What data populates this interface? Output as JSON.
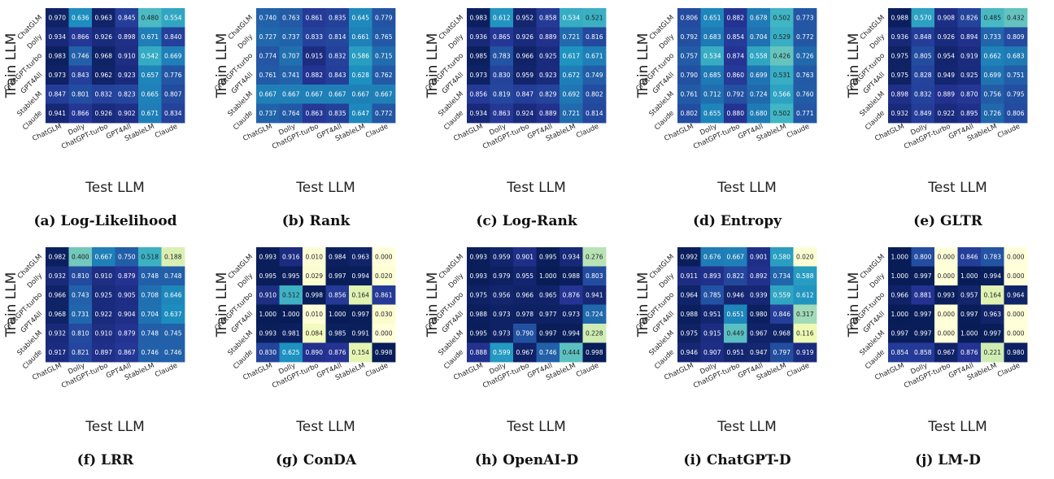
{
  "figure": {
    "colormap": "YlGnBu",
    "color_range": [
      0,
      1
    ],
    "ylabel": "Train LLM",
    "xlabel": "Test LLM"
  },
  "chart_data": [
    {
      "type": "heatmap",
      "caption": "(a) Log-Likelihood",
      "xlabel": "Test LLM",
      "ylabel": "Train LLM",
      "x_categories": [
        "ChatGLM",
        "Dolly",
        "ChatGPT-turbo",
        "GPT4All",
        "StableLM",
        "Claude"
      ],
      "y_categories": [
        "ChatGLM",
        "Dolly",
        "ChatGPT-turbo",
        "GPT4All",
        "StableLM",
        "Claude"
      ],
      "values": [
        [
          0.97,
          0.636,
          0.963,
          0.845,
          0.48,
          0.554
        ],
        [
          0.934,
          0.866,
          0.926,
          0.898,
          0.671,
          0.84
        ],
        [
          0.983,
          0.746,
          0.968,
          0.91,
          0.542,
          0.669
        ],
        [
          0.973,
          0.843,
          0.962,
          0.923,
          0.657,
          0.776
        ],
        [
          0.847,
          0.801,
          0.832,
          0.823,
          0.665,
          0.807
        ],
        [
          0.941,
          0.866,
          0.926,
          0.902,
          0.671,
          0.834
        ]
      ]
    },
    {
      "type": "heatmap",
      "caption": "(b) Rank",
      "xlabel": "Test LLM",
      "ylabel": "Train LLM",
      "x_categories": [
        "ChatGLM",
        "Dolly",
        "ChatGPT-turbo",
        "GPT4All",
        "StableLM",
        "Claude"
      ],
      "y_categories": [
        "ChatGLM",
        "Dolly",
        "ChatGPT-turbo",
        "GPT4All",
        "StableLM",
        "Claude"
      ],
      "values": [
        [
          0.74,
          0.763,
          0.861,
          0.835,
          0.645,
          0.779
        ],
        [
          0.727,
          0.737,
          0.833,
          0.814,
          0.661,
          0.765
        ],
        [
          0.774,
          0.707,
          0.915,
          0.832,
          0.586,
          0.715
        ],
        [
          0.761,
          0.741,
          0.882,
          0.843,
          0.628,
          0.762
        ],
        [
          0.667,
          0.667,
          0.667,
          0.667,
          0.667,
          0.667
        ],
        [
          0.737,
          0.764,
          0.863,
          0.835,
          0.647,
          0.772
        ]
      ]
    },
    {
      "type": "heatmap",
      "caption": "(c) Log-Rank",
      "xlabel": "Test LLM",
      "ylabel": "Train LLM",
      "x_categories": [
        "ChatGLM",
        "Dolly",
        "ChatGPT-turbo",
        "GPT4All",
        "StableLM",
        "Claude"
      ],
      "y_categories": [
        "ChatGLM",
        "Dolly",
        "ChatGPT-turbo",
        "GPT4All",
        "StableLM",
        "Claude"
      ],
      "values": [
        [
          0.983,
          0.612,
          0.952,
          0.858,
          0.534,
          0.521
        ],
        [
          0.936,
          0.865,
          0.926,
          0.889,
          0.721,
          0.816
        ],
        [
          0.985,
          0.783,
          0.966,
          0.925,
          0.617,
          0.671
        ],
        [
          0.973,
          0.83,
          0.959,
          0.923,
          0.672,
          0.749
        ],
        [
          0.856,
          0.819,
          0.847,
          0.829,
          0.692,
          0.802
        ],
        [
          0.934,
          0.863,
          0.924,
          0.889,
          0.721,
          0.814
        ]
      ]
    },
    {
      "type": "heatmap",
      "caption": "(d) Entropy",
      "xlabel": "Test LLM",
      "ylabel": "Train LLM",
      "x_categories": [
        "ChatGLM",
        "Dolly",
        "ChatGPT-turbo",
        "GPT4All",
        "StableLM",
        "Claude"
      ],
      "y_categories": [
        "ChatGLM",
        "Dolly",
        "ChatGPT-turbo",
        "GPT4All",
        "StableLM",
        "Claude"
      ],
      "values": [
        [
          0.806,
          0.651,
          0.882,
          0.678,
          0.502,
          0.773
        ],
        [
          0.792,
          0.683,
          0.854,
          0.704,
          0.529,
          0.772
        ],
        [
          0.757,
          0.534,
          0.874,
          0.558,
          0.426,
          0.726
        ],
        [
          0.79,
          0.685,
          0.86,
          0.699,
          0.531,
          0.763
        ],
        [
          0.761,
          0.712,
          0.792,
          0.724,
          0.566,
          0.76
        ],
        [
          0.802,
          0.655,
          0.88,
          0.68,
          0.502,
          0.771
        ]
      ]
    },
    {
      "type": "heatmap",
      "caption": "(e) GLTR",
      "xlabel": "Test LLM",
      "ylabel": "Train LLM",
      "x_categories": [
        "ChatGLM",
        "Dolly",
        "ChatGPT-turbo",
        "GPT4All",
        "StableLM",
        "Claude"
      ],
      "y_categories": [
        "ChatGLM",
        "Dolly",
        "ChatGPT-turbo",
        "GPT4All",
        "StableLM",
        "Claude"
      ],
      "values": [
        [
          0.988,
          0.57,
          0.908,
          0.826,
          0.485,
          0.432
        ],
        [
          0.936,
          0.848,
          0.926,
          0.894,
          0.733,
          0.809
        ],
        [
          0.975,
          0.805,
          0.954,
          0.919,
          0.662,
          0.683
        ],
        [
          0.975,
          0.828,
          0.949,
          0.925,
          0.699,
          0.751
        ],
        [
          0.898,
          0.832,
          0.889,
          0.87,
          0.756,
          0.795
        ],
        [
          0.932,
          0.849,
          0.922,
          0.895,
          0.726,
          0.806
        ]
      ]
    },
    {
      "type": "heatmap",
      "caption": "(f) LRR",
      "xlabel": "Test LLM",
      "ylabel": "Train LLM",
      "x_categories": [
        "ChatGLM",
        "Dolly",
        "ChatGPT-turbo",
        "GPT4All",
        "StableLM",
        "Claude"
      ],
      "y_categories": [
        "ChatGLM",
        "Dolly",
        "ChatGPT-turbo",
        "GPT4All",
        "StableLM",
        "Claude"
      ],
      "values": [
        [
          0.982,
          0.4,
          0.667,
          0.75,
          0.518,
          0.188
        ],
        [
          0.932,
          0.81,
          0.91,
          0.879,
          0.748,
          0.748
        ],
        [
          0.966,
          0.743,
          0.925,
          0.905,
          0.708,
          0.646
        ],
        [
          0.968,
          0.731,
          0.922,
          0.904,
          0.704,
          0.637
        ],
        [
          0.932,
          0.81,
          0.91,
          0.879,
          0.748,
          0.745
        ],
        [
          0.917,
          0.821,
          0.897,
          0.867,
          0.746,
          0.746
        ]
      ]
    },
    {
      "type": "heatmap",
      "caption": "(g) ConDA",
      "xlabel": "Test LLM",
      "ylabel": "Train LLM",
      "x_categories": [
        "ChatGLM",
        "Dolly",
        "ChatGPT-turbo",
        "GPT4All",
        "StableLM",
        "Claude"
      ],
      "y_categories": [
        "ChatGLM",
        "Dolly",
        "ChatGPT-turbo",
        "GPT4All",
        "StableLM",
        "Claude"
      ],
      "values": [
        [
          0.993,
          0.916,
          0.01,
          0.984,
          0.963,
          0.0
        ],
        [
          0.995,
          0.995,
          0.029,
          0.997,
          0.994,
          0.02
        ],
        [
          0.91,
          0.512,
          0.998,
          0.856,
          0.164,
          0.861
        ],
        [
          1.0,
          1.0,
          0.01,
          1.0,
          0.997,
          0.03
        ],
        [
          0.993,
          0.981,
          0.084,
          0.985,
          0.991,
          0.0
        ],
        [
          0.83,
          0.625,
          0.89,
          0.876,
          0.154,
          0.998
        ]
      ]
    },
    {
      "type": "heatmap",
      "caption": "(h) OpenAI-D",
      "xlabel": "Test LLM",
      "ylabel": "Train LLM",
      "x_categories": [
        "ChatGLM",
        "Dolly",
        "ChatGPT-turbo",
        "GPT4All",
        "StableLM",
        "Claude"
      ],
      "y_categories": [
        "ChatGLM",
        "Dolly",
        "ChatGPT-turbo",
        "GPT4All",
        "StableLM",
        "Claude"
      ],
      "values": [
        [
          0.993,
          0.959,
          0.901,
          0.995,
          0.934,
          0.276
        ],
        [
          0.993,
          0.979,
          0.955,
          1.0,
          0.988,
          0.803
        ],
        [
          0.975,
          0.956,
          0.966,
          0.965,
          0.876,
          0.941
        ],
        [
          0.988,
          0.973,
          0.978,
          0.977,
          0.973,
          0.724
        ],
        [
          0.995,
          0.973,
          0.79,
          0.997,
          0.994,
          0.228
        ],
        [
          0.888,
          0.599,
          0.967,
          0.746,
          0.444,
          0.998
        ]
      ]
    },
    {
      "type": "heatmap",
      "caption": "(i) ChatGPT-D",
      "xlabel": "Test LLM",
      "ylabel": "Train LLM",
      "x_categories": [
        "ChatGLM",
        "Dolly",
        "ChatGPT-turbo",
        "GPT4All",
        "StableLM",
        "Claude"
      ],
      "y_categories": [
        "ChatGLM",
        "Dolly",
        "ChatGPT-turbo",
        "GPT4All",
        "StableLM",
        "Claude"
      ],
      "values": [
        [
          0.992,
          0.676,
          0.667,
          0.901,
          0.58,
          0.02
        ],
        [
          0.911,
          0.893,
          0.822,
          0.892,
          0.734,
          0.588
        ],
        [
          0.964,
          0.785,
          0.946,
          0.939,
          0.559,
          0.612
        ],
        [
          0.988,
          0.951,
          0.651,
          0.98,
          0.846,
          0.317
        ],
        [
          0.975,
          0.915,
          0.449,
          0.967,
          0.968,
          0.116
        ],
        [
          0.946,
          0.907,
          0.951,
          0.947,
          0.797,
          0.919
        ]
      ]
    },
    {
      "type": "heatmap",
      "caption": "(j) LM-D",
      "xlabel": "Test LLM",
      "ylabel": "Train LLM",
      "x_categories": [
        "ChatGLM",
        "Dolly",
        "ChatGPT-turbo",
        "GPT4All",
        "StableLM",
        "Claude"
      ],
      "y_categories": [
        "ChatGLM",
        "Dolly",
        "ChatGPT-turbo",
        "GPT4All",
        "StableLM",
        "Claude"
      ],
      "values": [
        [
          1.0,
          0.8,
          0.0,
          0.846,
          0.783,
          0.0
        ],
        [
          1.0,
          0.997,
          0.0,
          1.0,
          0.994,
          0.0
        ],
        [
          0.966,
          0.881,
          0.993,
          0.957,
          0.164,
          0.964
        ],
        [
          1.0,
          0.997,
          0.0,
          0.997,
          0.963,
          0.0
        ],
        [
          0.997,
          0.997,
          0.0,
          1.0,
          0.997,
          0.0
        ],
        [
          0.854,
          0.858,
          0.967,
          0.876,
          0.221,
          0.98
        ]
      ]
    }
  ]
}
